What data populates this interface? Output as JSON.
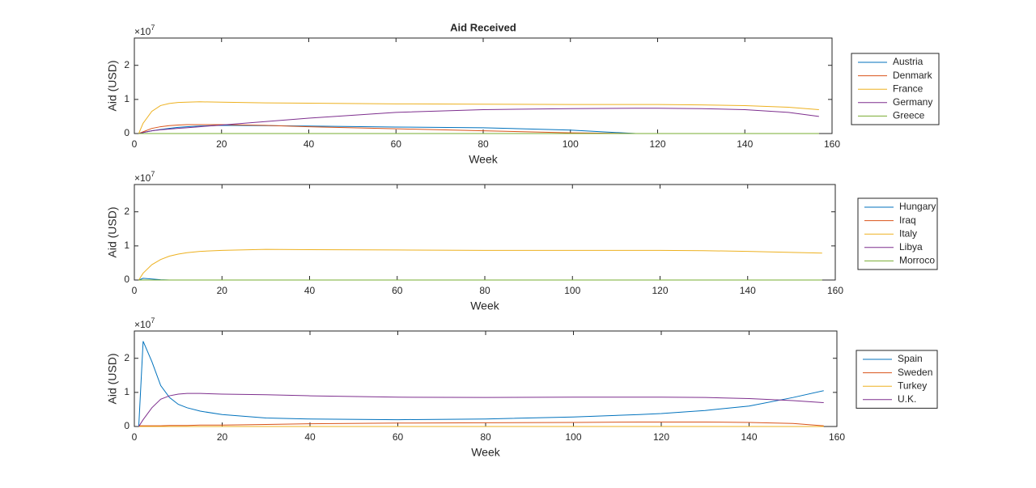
{
  "chart_data": [
    {
      "type": "line",
      "title": "Aid Received",
      "x_label": "Week",
      "y_label": "Aid (USD)",
      "y_multiplier": "×10",
      "y_multiplier_exponent": "7",
      "x": [
        1,
        2,
        4,
        6,
        8,
        10,
        12,
        15,
        20,
        30,
        40,
        60,
        80,
        100,
        115,
        120,
        130,
        140,
        150,
        157
      ],
      "xlim": [
        0,
        160
      ],
      "xticks": [
        0,
        20,
        40,
        60,
        80,
        100,
        120,
        140,
        160
      ],
      "ylim": [
        0,
        2.8
      ],
      "yticks": [
        0,
        1,
        2
      ],
      "series": [
        {
          "name": "Austria",
          "color": "#0072BD",
          "values": [
            0,
            0.03,
            0.08,
            0.12,
            0.15,
            0.18,
            0.2,
            0.22,
            0.24,
            0.23,
            0.22,
            0.19,
            0.17,
            0.1,
            0,
            0,
            0,
            0,
            0,
            0
          ]
        },
        {
          "name": "Denmark",
          "color": "#D95319",
          "values": [
            0,
            0.05,
            0.15,
            0.2,
            0.23,
            0.25,
            0.26,
            0.26,
            0.26,
            0.24,
            0.2,
            0.14,
            0.08,
            0.02,
            0,
            0,
            0,
            0,
            0,
            0
          ]
        },
        {
          "name": "France",
          "color": "#EDB120",
          "values": [
            0,
            0.3,
            0.65,
            0.82,
            0.88,
            0.91,
            0.92,
            0.93,
            0.92,
            0.9,
            0.89,
            0.87,
            0.86,
            0.85,
            0.85,
            0.85,
            0.84,
            0.82,
            0.77,
            0.7
          ]
        },
        {
          "name": "Germany",
          "color": "#7E2F8E",
          "values": [
            0,
            0.03,
            0.08,
            0.11,
            0.13,
            0.15,
            0.17,
            0.2,
            0.25,
            0.35,
            0.45,
            0.62,
            0.7,
            0.73,
            0.74,
            0.74,
            0.73,
            0.7,
            0.62,
            0.5
          ]
        },
        {
          "name": "Greece",
          "color": "#77AC30",
          "values": [
            0,
            0,
            0,
            0,
            0,
            0,
            0,
            0,
            0,
            0,
            0,
            0,
            0,
            0,
            0,
            0,
            0,
            0,
            0,
            0
          ]
        }
      ]
    },
    {
      "type": "line",
      "x_label": "Week",
      "y_label": "Aid (USD)",
      "y_multiplier": "×10",
      "y_multiplier_exponent": "7",
      "x": [
        1,
        2,
        4,
        6,
        8,
        10,
        12,
        15,
        20,
        30,
        40,
        60,
        80,
        100,
        115,
        120,
        130,
        140,
        150,
        157
      ],
      "xlim": [
        0,
        160
      ],
      "xticks": [
        0,
        20,
        40,
        60,
        80,
        100,
        120,
        140,
        160
      ],
      "ylim": [
        0,
        2.8
      ],
      "yticks": [
        0,
        1,
        2
      ],
      "series": [
        {
          "name": "Hungary",
          "color": "#0072BD",
          "values": [
            0,
            0.05,
            0.03,
            0.01,
            0,
            0,
            0,
            0,
            0,
            0,
            0,
            0,
            0,
            0,
            0,
            0,
            0,
            0,
            0,
            0
          ]
        },
        {
          "name": "Iraq",
          "color": "#D95319",
          "values": [
            0,
            0,
            0,
            0,
            0,
            0,
            0,
            0,
            0,
            0,
            0,
            0,
            0,
            0,
            0,
            0,
            0,
            0,
            0,
            0
          ]
        },
        {
          "name": "Italy",
          "color": "#EDB120",
          "values": [
            0,
            0.2,
            0.45,
            0.6,
            0.7,
            0.76,
            0.8,
            0.84,
            0.87,
            0.9,
            0.89,
            0.88,
            0.87,
            0.87,
            0.87,
            0.87,
            0.86,
            0.84,
            0.81,
            0.79
          ]
        },
        {
          "name": "Libya",
          "color": "#7E2F8E",
          "values": [
            0,
            0,
            0,
            0,
            0,
            0,
            0,
            0,
            0,
            0,
            0,
            0,
            0,
            0,
            0,
            0,
            0,
            0,
            0,
            0
          ]
        },
        {
          "name": "Morroco",
          "color": "#77AC30",
          "values": [
            0,
            0,
            0,
            0,
            0,
            0,
            0,
            0,
            0,
            0,
            0,
            0,
            0,
            0,
            0,
            0,
            0,
            0,
            0,
            0
          ]
        }
      ]
    },
    {
      "type": "line",
      "x_label": "Week",
      "y_label": "Aid (USD)",
      "y_multiplier": "×10",
      "y_multiplier_exponent": "7",
      "x": [
        1,
        2,
        4,
        6,
        8,
        10,
        12,
        15,
        20,
        30,
        40,
        60,
        80,
        100,
        115,
        120,
        130,
        140,
        150,
        157
      ],
      "xlim": [
        0,
        160
      ],
      "xticks": [
        0,
        20,
        40,
        60,
        80,
        100,
        120,
        140,
        160
      ],
      "ylim": [
        0,
        2.8
      ],
      "yticks": [
        0,
        1,
        2
      ],
      "series": [
        {
          "name": "Spain",
          "color": "#0072BD",
          "values": [
            0,
            2.5,
            1.9,
            1.2,
            0.85,
            0.65,
            0.55,
            0.45,
            0.35,
            0.25,
            0.22,
            0.2,
            0.22,
            0.28,
            0.35,
            0.38,
            0.47,
            0.6,
            0.85,
            1.05
          ]
        },
        {
          "name": "Sweden",
          "color": "#D95319",
          "values": [
            0.02,
            0.02,
            0.02,
            0.02,
            0.03,
            0.03,
            0.03,
            0.04,
            0.04,
            0.06,
            0.08,
            0.1,
            0.11,
            0.12,
            0.13,
            0.13,
            0.13,
            0.12,
            0.09,
            0.02
          ]
        },
        {
          "name": "Turkey",
          "color": "#EDB120",
          "values": [
            0,
            0,
            0,
            0,
            0,
            0,
            0,
            0,
            0,
            0,
            0,
            0,
            0,
            0,
            0,
            0,
            0,
            0,
            0,
            0
          ]
        },
        {
          "name": "U.K.",
          "color": "#7E2F8E",
          "values": [
            0,
            0.2,
            0.55,
            0.8,
            0.9,
            0.95,
            0.97,
            0.97,
            0.95,
            0.93,
            0.9,
            0.86,
            0.85,
            0.86,
            0.86,
            0.86,
            0.85,
            0.82,
            0.76,
            0.7
          ]
        }
      ]
    }
  ]
}
